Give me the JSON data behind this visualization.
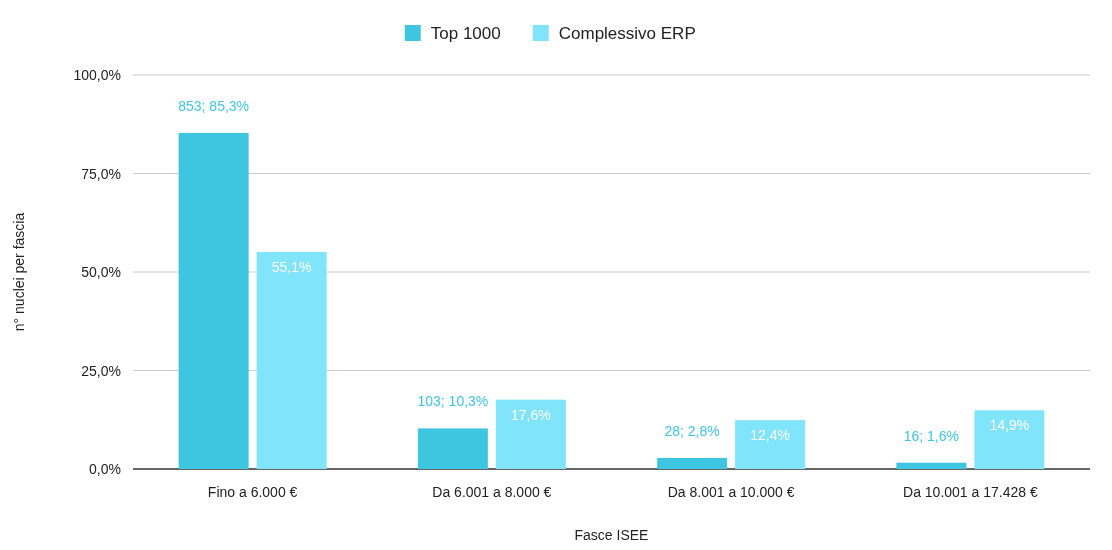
{
  "chart_data": {
    "type": "bar",
    "xlabel": "Fasce ISEE",
    "ylabel": "n° nuclei per fascia",
    "categories": [
      "Fino a 6.000 €",
      "Da 6.001 a 8.000 €",
      "Da 8.001 a 10.000 €",
      "Da 10.001 a 17.428 €"
    ],
    "series": [
      {
        "name": "Top 1000",
        "color": "#3ec6e0",
        "values": [
          85.3,
          10.3,
          2.8,
          1.6
        ],
        "value_labels": [
          "853; 85,3%",
          "103; 10,3%",
          "28; 2,8%",
          "16; 1,6%"
        ]
      },
      {
        "name": "Complessivo ERP",
        "color": "#80e4fa",
        "values": [
          55.1,
          17.6,
          12.4,
          14.9
        ],
        "value_labels": [
          "55,1%",
          "17,6%",
          "12,4%",
          "14,9%"
        ]
      }
    ],
    "ylim": [
      0,
      100
    ],
    "yticks": [
      {
        "value": 0,
        "label": "0,0%"
      },
      {
        "value": 25,
        "label": "25,0%"
      },
      {
        "value": 50,
        "label": "50,0%"
      },
      {
        "value": 75,
        "label": "75,0%"
      },
      {
        "value": 100,
        "label": "100,0%"
      }
    ],
    "grid": "y",
    "legend": "top"
  }
}
